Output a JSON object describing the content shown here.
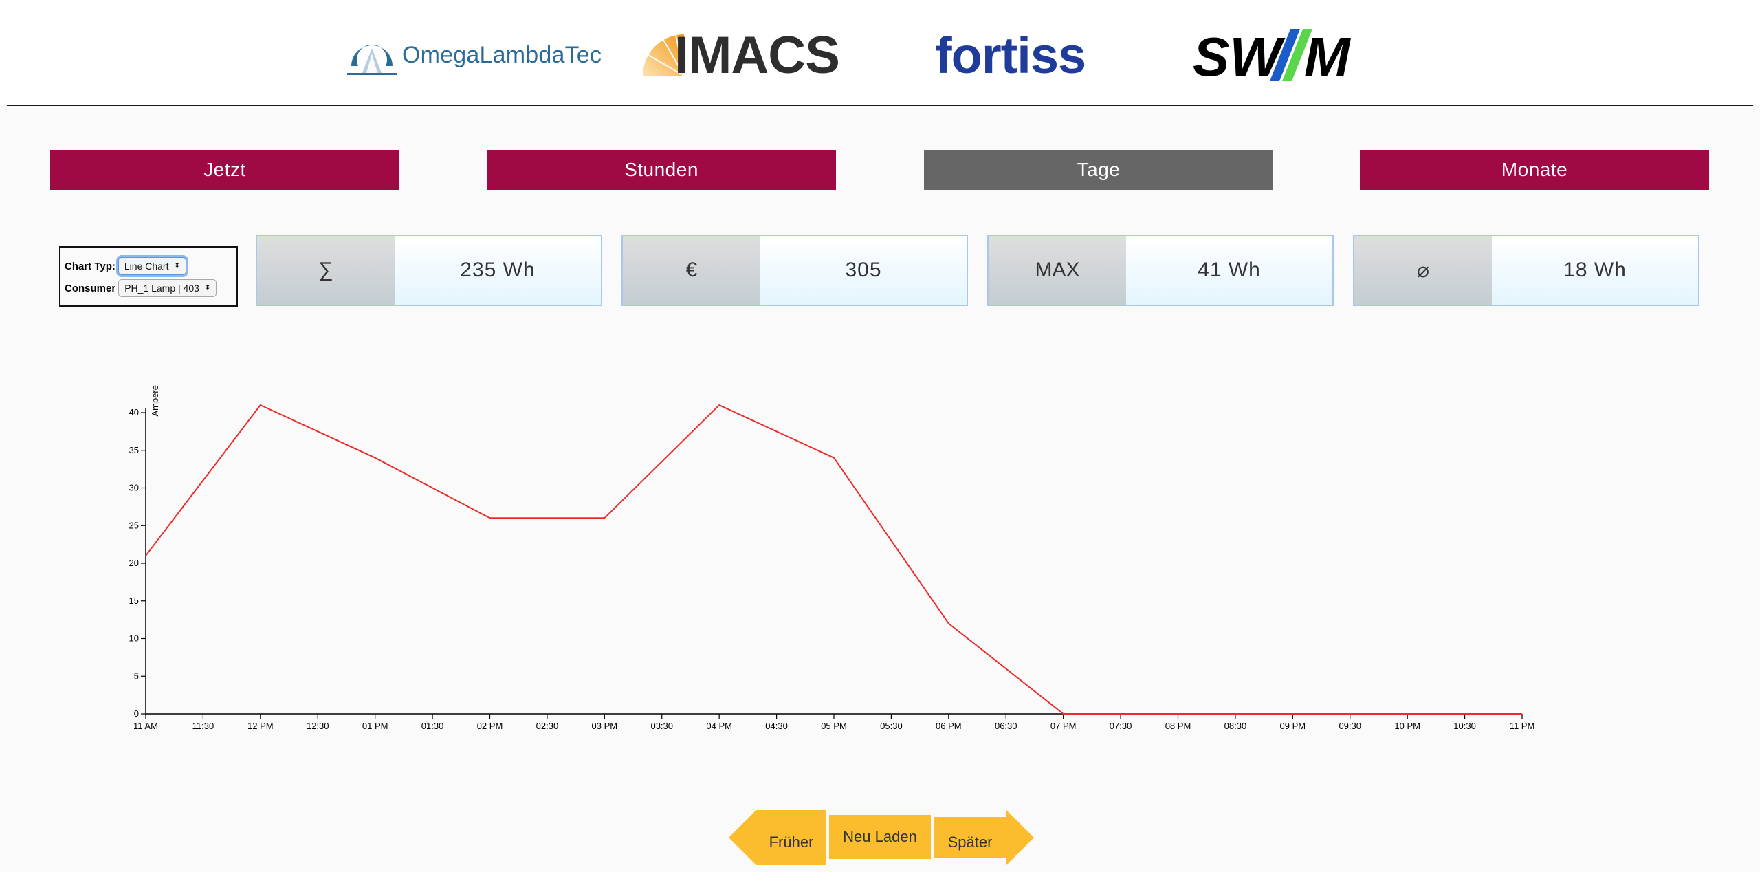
{
  "header": {
    "logos": [
      {
        "name": "OmegaLambdaTec",
        "text": "OmegaLambdaTec",
        "color": "#2a6b9a"
      },
      {
        "name": "IMACS",
        "text": "IMACS",
        "color": "#2e2e2e"
      },
      {
        "name": "fortiss",
        "text": "fortiss",
        "color": "#1f3c9b"
      },
      {
        "name": "SWM",
        "text": "SWM",
        "color": "#000000"
      }
    ]
  },
  "tabs": [
    {
      "label": "Jetzt",
      "active": false
    },
    {
      "label": "Stunden",
      "active": false
    },
    {
      "label": "Tage",
      "active": true
    },
    {
      "label": "Monate",
      "active": false
    }
  ],
  "colors": {
    "tab_bg": "#a00a44",
    "tab_active_bg": "#666666",
    "nav_bg": "#fbbd2d",
    "line": "#ee2b2b"
  },
  "controls": {
    "chart_type_label": "Chart Typ:",
    "chart_type_value": "Line Chart",
    "consumer_label": "Consumer",
    "consumer_value": "PH_1 Lamp | 403"
  },
  "stats": [
    {
      "label": "∑",
      "value": "235 Wh"
    },
    {
      "label": "€",
      "value": "305"
    },
    {
      "label": "MAX",
      "value": "41 Wh"
    },
    {
      "label": "⌀",
      "value": "18 Wh"
    }
  ],
  "chart_data": {
    "type": "line",
    "ylabel": "Ampere",
    "ylim": [
      0,
      40
    ],
    "yticks": [
      "0",
      "5",
      "10",
      "15",
      "20",
      "25",
      "30",
      "35",
      "40"
    ],
    "xticks": [
      "11 AM",
      "11:30",
      "12 PM",
      "12:30",
      "01 PM",
      "01:30",
      "02 PM",
      "02:30",
      "03 PM",
      "03:30",
      "04 PM",
      "04:30",
      "05 PM",
      "05:30",
      "06 PM",
      "06:30",
      "07 PM",
      "07:30",
      "08 PM",
      "08:30",
      "09 PM",
      "09:30",
      "10 PM",
      "10:30",
      "11 PM"
    ],
    "series": [
      {
        "x": [
          "11 AM",
          "12 PM",
          "01 PM",
          "02 PM",
          "03 PM",
          "04 PM",
          "05 PM",
          "06 PM",
          "07 PM",
          "08 PM",
          "09 PM",
          "10 PM",
          "11 PM"
        ],
        "values": [
          21,
          41,
          34,
          26,
          26,
          41,
          34,
          12,
          0,
          0,
          0,
          0,
          0
        ]
      }
    ]
  },
  "nav": {
    "earlier": "Früher",
    "reload": "Neu Laden",
    "later": "Später"
  }
}
